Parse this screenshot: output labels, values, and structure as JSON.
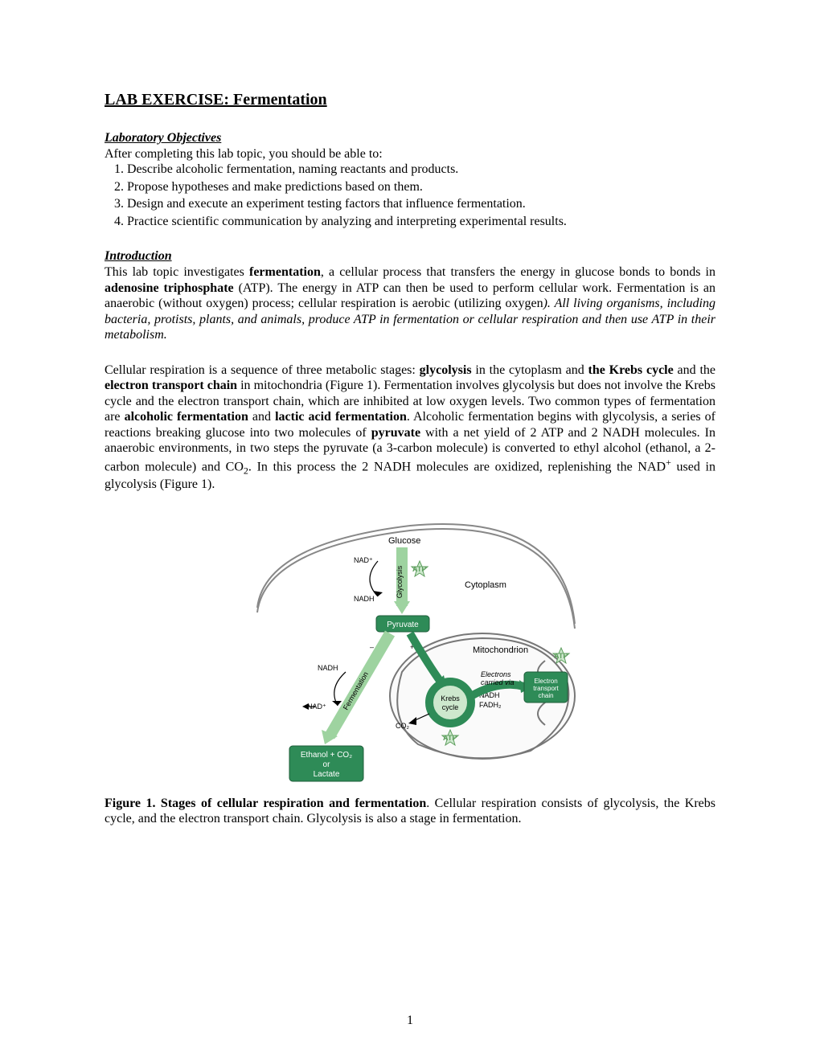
{
  "title": "LAB EXERCISE: Fermentation",
  "objectives": {
    "heading_html": "<span class='section-head'>Laboratory Objectives</span>",
    "intro": "After completing this lab topic, you should be able to:",
    "items": [
      "Describe alcoholic fermentation, naming reactants and products.",
      "Propose hypotheses and make predictions based on them.",
      "Design and execute an experiment testing factors that influence fermentation.",
      "Practice scientific communication by analyzing and interpreting experimental results."
    ]
  },
  "intro": {
    "heading_html": "<span class='section-head'>Introduction</span>",
    "p1_html": "This lab topic investigates <b>fermentation</b>, a cellular process that transfers the energy in glucose bonds to bonds in <b>adenosine triphosphate</b> (ATP).  The energy in ATP can then be used to perform cellular work.  Fermentation is an anaerobic (without oxygen) process; cellular respiration is aerobic (utilizing oxygen<i>).  All living organisms, including bacteria, protists, plants, and animals, produce ATP in fermentation or cellular respiration and then use ATP in their metabolism.</i>",
    "p2_html": "Cellular respiration is a sequence of three metabolic stages: <b>glycolysis</b> in the cytoplasm and <b>the Krebs cycle</b> and the <b>electron transport chain</b> in mitochondria (Figure 1).  Fermentation involves glycolysis but does not involve the Krebs cycle and the electron transport chain, which are inhibited at low oxygen levels.  Two common types of fermentation are <b>alcoholic fermentation</b> and <b>lactic acid fermentation</b>.  Alcoholic fermentation begins with glycolysis, a series of reactions breaking glucose into two molecules of <b>pyruvate</b> with a net yield of 2 ATP and 2 NADH molecules.  In anaerobic environments, in two steps the pyruvate (a 3-carbon molecule) is converted to ethyl alcohol (ethanol, a 2-carbon molecule) and CO<sub>2</sub>.  In this process the 2 NADH molecules are oxidized, replenishing the NAD<sup>+</sup> used in glycolysis (Figure 1)."
  },
  "figure": {
    "labels": {
      "glucose": "Glucose",
      "glycolysis": "Glycolysis",
      "nad_plus": "NAD⁺",
      "nadh": "NADH",
      "atp": "ATP",
      "cytoplasm": "Cytoplasm",
      "pyruvate": "Pyruvate",
      "minus_o2": "– O₂",
      "plus_o2": "+O₂",
      "mitochondrion": "Mitochondrion",
      "fermentation": "Fermentation",
      "electrons": "Electrons",
      "carried_via": "carried via",
      "electron_transport": "Electron transport chain",
      "krebs": "Krebs cycle",
      "fadh2": "FADH₂",
      "co2": "CO₂",
      "endbox_l1": "Ethanol + CO₂",
      "endbox_l2": "or",
      "endbox_l3": "Lactate"
    },
    "colors": {
      "pill_fill": "#2e8b57",
      "pill_stroke": "#1e5d3a",
      "arrow_light": "#9ed3a0",
      "arrow_dark": "#2e8b57",
      "cell_line": "#888888",
      "mito_fill": "#fafafa",
      "mito_stroke": "#777777"
    },
    "caption_html": "<b>Figure 1. Stages of cellular respiration and fermentation</b>.  Cellular respiration consists of glycolysis, the Krebs cycle, and the electron transport chain. Glycolysis is also a stage in fermentation."
  },
  "page_number": "1"
}
